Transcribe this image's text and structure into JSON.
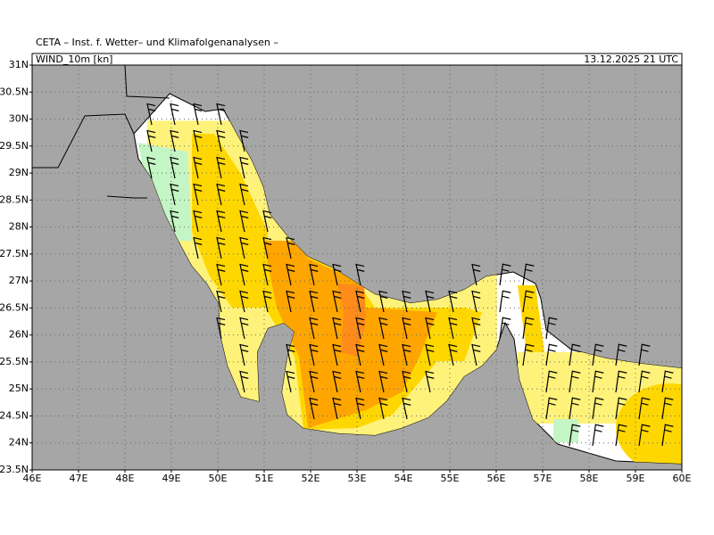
{
  "header": {
    "title": "CETA – Inst. f. Wetter– und Klimafolgenanalysen –",
    "field": "WIND_10m [kn]",
    "valid_time": "13.12.2025 21 UTC"
  },
  "axes": {
    "lat_labels": [
      "31N",
      "30.5N",
      "30N",
      "29.5N",
      "29N",
      "28.5N",
      "28N",
      "27.5N",
      "27N",
      "26.5N",
      "26N",
      "25.5N",
      "25N",
      "24.5N",
      "24N",
      "23.5N"
    ],
    "lon_labels": [
      "46E",
      "47E",
      "48E",
      "49E",
      "50E",
      "51E",
      "52E",
      "53E",
      "54E",
      "55E",
      "56E",
      "57E",
      "58E",
      "59E",
      "60E"
    ]
  }
}
